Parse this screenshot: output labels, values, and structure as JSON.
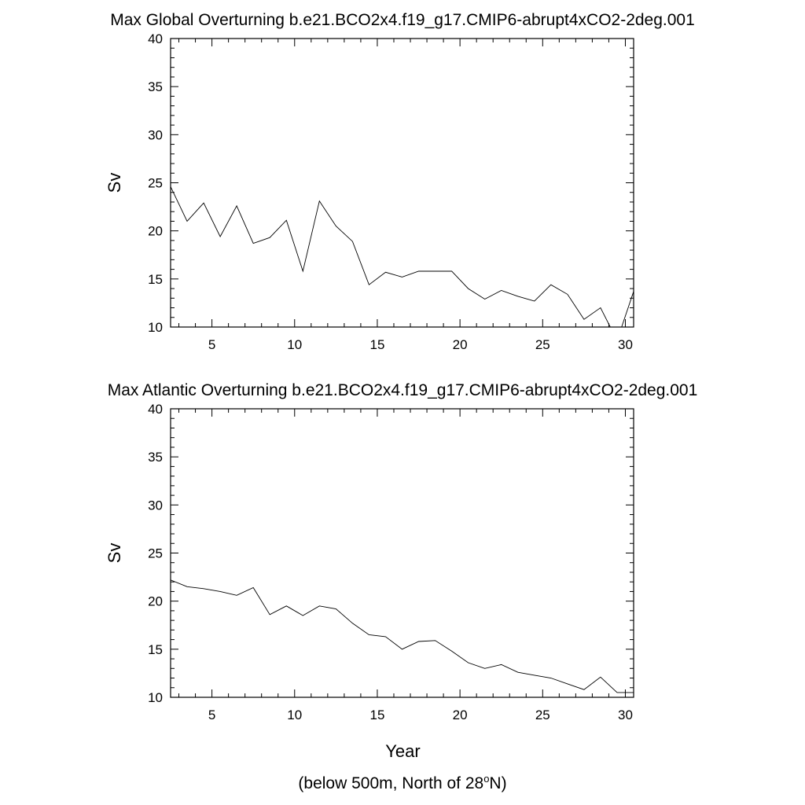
{
  "chart_data": [
    {
      "type": "line",
      "title": "Max Global Overturning b.e21.BCO2x4.f19_g17.CMIP6-abrupt4xCO2-2deg.001",
      "xlabel": "",
      "ylabel": "Sv",
      "xlim": [
        2.5,
        30.5
      ],
      "ylim": [
        10,
        40
      ],
      "x_ticks": [
        5,
        10,
        15,
        20,
        25,
        30
      ],
      "y_ticks": [
        10,
        15,
        20,
        25,
        30,
        35,
        40
      ],
      "grid": false,
      "series": [
        {
          "name": "Global",
          "x": [
            2.5,
            3.5,
            4.5,
            5.5,
            6.5,
            7.5,
            8.5,
            9.5,
            10.5,
            11.5,
            12.5,
            13.5,
            14.5,
            15.5,
            16.5,
            17.5,
            18.5,
            19.5,
            20.5,
            21.5,
            22.5,
            23.5,
            24.5,
            25.5,
            26.5,
            27.5,
            28.5,
            29.5,
            30.5
          ],
          "values": [
            24.6,
            21.0,
            22.9,
            19.4,
            22.6,
            18.7,
            19.3,
            21.1,
            15.8,
            23.1,
            20.5,
            18.9,
            14.4,
            15.7,
            15.2,
            15.8,
            15.8,
            15.8,
            14.0,
            12.9,
            13.8,
            13.2,
            12.7,
            14.4,
            13.4,
            10.8,
            12.0,
            8.6,
            13.7
          ]
        }
      ]
    },
    {
      "type": "line",
      "title": "Max Atlantic Overturning b.e21.BCO2x4.f19_g17.CMIP6-abrupt4xCO2-2deg.001",
      "xlabel": "Year",
      "ylabel": "Sv",
      "xlim": [
        2.5,
        30.5
      ],
      "ylim": [
        10,
        40
      ],
      "x_ticks": [
        5,
        10,
        15,
        20,
        25,
        30
      ],
      "y_ticks": [
        10,
        15,
        20,
        25,
        30,
        35,
        40
      ],
      "grid": false,
      "series": [
        {
          "name": "Atlantic",
          "x": [
            2.5,
            3.5,
            4.5,
            5.5,
            6.5,
            7.5,
            8.5,
            9.5,
            10.5,
            11.5,
            12.5,
            13.5,
            14.5,
            15.5,
            16.5,
            17.5,
            18.5,
            19.5,
            20.5,
            21.5,
            22.5,
            23.5,
            24.5,
            25.5,
            26.5,
            27.5,
            28.5,
            29.5,
            30.5
          ],
          "values": [
            22.2,
            21.5,
            21.3,
            21.0,
            20.6,
            21.4,
            18.6,
            19.5,
            18.5,
            19.5,
            19.2,
            17.7,
            16.5,
            16.3,
            15.0,
            15.8,
            15.9,
            14.8,
            13.6,
            13.0,
            13.4,
            12.6,
            12.3,
            12.0,
            11.4,
            10.8,
            12.1,
            10.5,
            10.5
          ]
        }
      ]
    }
  ],
  "footnote": {
    "prefix": "(below 500m, North of 28",
    "degree": "o",
    "suffix": "N)"
  }
}
